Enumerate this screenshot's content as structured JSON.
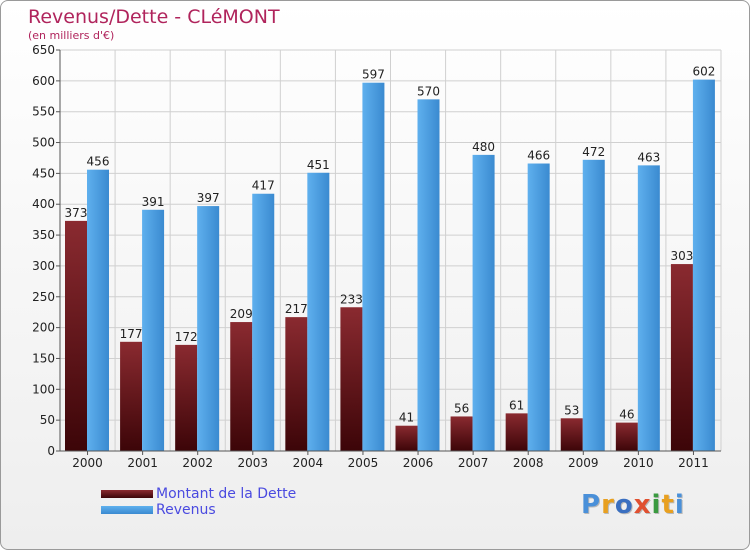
{
  "title": "Revenus/Dette - CLéMONT",
  "subtitle": "(en milliers d'€)",
  "logo": {
    "text": "Proxiti",
    "colors": [
      "#4a90d9",
      "#e8a020",
      "#3a6fc0",
      "#e05030",
      "#3a9a40",
      "#e8a020",
      "#4a90d9"
    ]
  },
  "colors": {
    "debt": "#7a1c24",
    "revenue": "#4d9fe0",
    "grid": "#d0d0d0",
    "text": "#222222",
    "title": "#b0245c",
    "legend_text": "#4a4ae0"
  },
  "chart_data": {
    "type": "bar",
    "title": "Revenus/Dette - CLéMONT",
    "subtitle": "(en milliers d'€)",
    "categories": [
      "2000",
      "2001",
      "2002",
      "2003",
      "2004",
      "2005",
      "2006",
      "2007",
      "2008",
      "2009",
      "2010",
      "2011"
    ],
    "series": [
      {
        "name": "Montant de la Dette",
        "values": [
          373,
          177,
          172,
          209,
          217,
          233,
          41,
          56,
          61,
          53,
          46,
          303
        ]
      },
      {
        "name": "Revenus",
        "values": [
          456,
          391,
          397,
          417,
          451,
          597,
          570,
          480,
          466,
          472,
          463,
          602
        ]
      }
    ],
    "ylim": [
      0,
      650
    ],
    "yticks": [
      0,
      50,
      100,
      150,
      200,
      250,
      300,
      350,
      400,
      450,
      500,
      550,
      600,
      650
    ],
    "grid": true,
    "legend": "bottom-left"
  }
}
